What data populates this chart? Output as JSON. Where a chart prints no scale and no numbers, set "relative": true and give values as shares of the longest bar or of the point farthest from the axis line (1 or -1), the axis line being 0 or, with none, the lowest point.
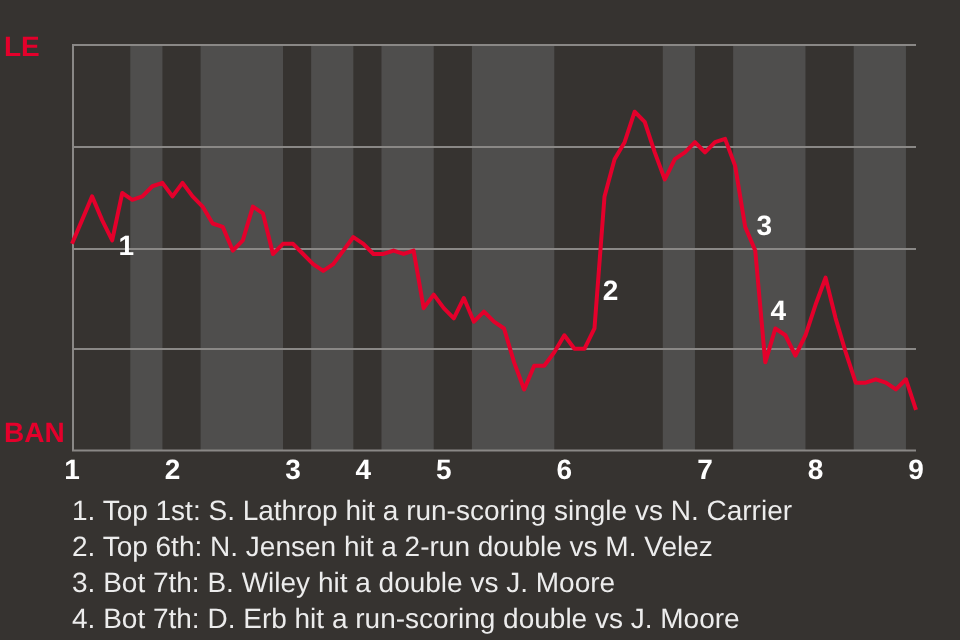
{
  "chart_data": {
    "type": "line",
    "relative": true,
    "categories": [
      "1",
      null,
      null,
      null,
      null,
      null,
      null,
      null,
      null,
      null,
      "2",
      null,
      null,
      null,
      null,
      null,
      null,
      null,
      null,
      null,
      null,
      null,
      "3",
      null,
      null,
      null,
      null,
      null,
      null,
      "4",
      null,
      null,
      null,
      null,
      null,
      null,
      null,
      "5",
      null,
      null,
      null,
      null,
      null,
      null,
      null,
      null,
      null,
      null,
      null,
      "6",
      null,
      null,
      null,
      null,
      null,
      null,
      null,
      null,
      null,
      null,
      null,
      null,
      null,
      "7",
      null,
      null,
      null,
      null,
      null,
      null,
      null,
      null,
      null,
      null,
      "8",
      null,
      null,
      null,
      null,
      null,
      null,
      null,
      null,
      null,
      "9"
    ],
    "series": [
      {
        "color": "#e4002b",
        "values": [
          0.61,
          0.68,
          0.75,
          0.68,
          0.62,
          0.76,
          0.74,
          0.75,
          0.78,
          0.79,
          0.75,
          0.79,
          0.75,
          0.72,
          0.67,
          0.66,
          0.59,
          0.62,
          0.72,
          0.7,
          0.58,
          0.61,
          0.61,
          0.58,
          0.55,
          0.53,
          0.55,
          0.59,
          0.63,
          0.61,
          0.58,
          0.58,
          0.59,
          0.58,
          0.59,
          0.42,
          0.46,
          0.42,
          0.39,
          0.45,
          0.38,
          0.41,
          0.38,
          0.36,
          0.26,
          0.18,
          0.25,
          0.25,
          0.29,
          0.34,
          0.3,
          0.3,
          0.36,
          0.75,
          0.86,
          0.91,
          1,
          0.97,
          0.88,
          0.8,
          0.86,
          0.88,
          0.91,
          0.88,
          0.91,
          0.92,
          0.84,
          0.66,
          0.59,
          0.26,
          0.36,
          0.34,
          0.28,
          0.34,
          0.43,
          0.51,
          0.39,
          0.29,
          0.2,
          0.2,
          0.21,
          0.2,
          0.18,
          0.21,
          0.12
        ]
      }
    ],
    "grid": "y",
    "annotations": [
      "LE",
      "BAN",
      "1",
      "2",
      "3",
      "4",
      "1. Top 1st: S. Lathrop hit a run-scoring single vs N. Carrier",
      "2. Top 6th: N. Jensen hit a 2-run double vs M. Velez",
      "3. Bot 7th: B. Wiley hit a double vs J. Moore",
      "4. Bot 7th: D. Erb hit a run-scoring double vs J. Moore"
    ]
  }
}
